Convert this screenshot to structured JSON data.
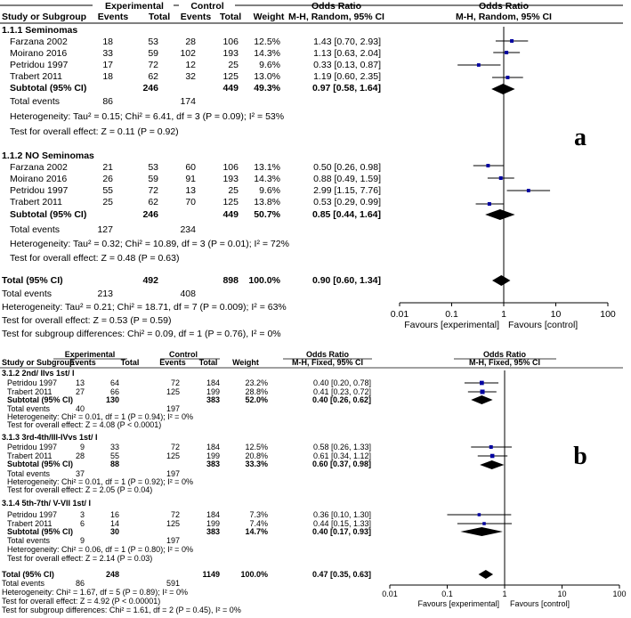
{
  "panels": {
    "a": {
      "label": "a",
      "header": {
        "group1": "Experimental",
        "group2": "Control",
        "col_study": "Study or Subgroup",
        "col_events1": "Events",
        "col_total1": "Total",
        "col_events2": "Events",
        "col_total2": "Total",
        "col_weight": "Weight",
        "col_or_title": "Odds Ratio",
        "col_or_method": "M-H, Random, 95% CI",
        "col_plot_title": "Odds Ratio",
        "col_plot_method": "M-H, Random, 95% CI"
      },
      "subgroups": [
        {
          "title": "1.1.1 Seminomas",
          "studies": [
            {
              "name": "Farzana  2002",
              "e1": "18",
              "n1": "53",
              "e2": "28",
              "n2": "106",
              "weight": "12.5%",
              "ci_text": "1.43 [0.70, 2.93]"
            },
            {
              "name": "Moirano  2016",
              "e1": "33",
              "n1": "59",
              "e2": "102",
              "n2": "193",
              "weight": "14.3%",
              "ci_text": "1.13 [0.63, 2.04]"
            },
            {
              "name": "Petridou 1997",
              "e1": "17",
              "n1": "72",
              "e2": "12",
              "n2": "25",
              "weight": "9.6%",
              "ci_text": "0.33 [0.13, 0.87]"
            },
            {
              "name": "Trabert 2011",
              "e1": "18",
              "n1": "62",
              "e2": "32",
              "n2": "125",
              "weight": "13.0%",
              "ci_text": "1.19 [0.60, 2.35]"
            }
          ],
          "subtotal": {
            "label": "Subtotal (95% CI)",
            "n1": "246",
            "n2": "449",
            "weight": "49.3%",
            "ci_text": "0.97 [0.58, 1.64]"
          },
          "total_events": {
            "label": "Total events",
            "e1": "86",
            "e2": "174"
          },
          "heterogeneity": "Heterogeneity: Tau² = 0.15; Chi² = 6.41, df = 3 (P = 0.09); I² = 53%",
          "overall": "Test for overall effect: Z = 0.11 (P = 0.92)"
        },
        {
          "title": "1.1.2 NO Seminomas",
          "studies": [
            {
              "name": "Farzana  2002",
              "e1": "21",
              "n1": "53",
              "e2": "60",
              "n2": "106",
              "weight": "13.1%",
              "ci_text": "0.50 [0.26, 0.98]"
            },
            {
              "name": "Moirano  2016",
              "e1": "26",
              "n1": "59",
              "e2": "91",
              "n2": "193",
              "weight": "14.3%",
              "ci_text": "0.88 [0.49, 1.59]"
            },
            {
              "name": "Petridou 1997",
              "e1": "55",
              "n1": "72",
              "e2": "13",
              "n2": "25",
              "weight": "9.6%",
              "ci_text": "2.99 [1.15, 7.76]"
            },
            {
              "name": "Trabert 2011",
              "e1": "25",
              "n1": "62",
              "e2": "70",
              "n2": "125",
              "weight": "13.8%",
              "ci_text": "0.53 [0.29, 0.99]"
            }
          ],
          "subtotal": {
            "label": "Subtotal (95% CI)",
            "n1": "246",
            "n2": "449",
            "weight": "50.7%",
            "ci_text": "0.85 [0.44, 1.64]"
          },
          "total_events": {
            "label": "Total events",
            "e1": "127",
            "e2": "234"
          },
          "heterogeneity": "Heterogeneity: Tau² = 0.32; Chi² = 10.89, df = 3 (P = 0.01); I² = 72%",
          "overall": "Test for overall effect: Z = 0.48 (P = 0.63)"
        }
      ],
      "total": {
        "label": "Total (95% CI)",
        "n1": "492",
        "n2": "898",
        "weight": "100.0%",
        "ci_text": "0.90 [0.60, 1.34]"
      },
      "total_events": {
        "label": "Total events",
        "e1": "213",
        "e2": "408"
      },
      "heterogeneity": "Heterogeneity: Tau² = 0.21; Chi² = 18.71, df = 7 (P = 0.009); I² = 63%",
      "overall": "Test for overall effect: Z = 0.53 (P = 0.59)",
      "subgroup_diff": "Test for subgroup differences: Chi² = 0.09, df = 1 (P = 0.76), I² = 0%",
      "axis_ticks": [
        "0.01",
        "0.1",
        "1",
        "10",
        "100"
      ],
      "favours_left": "Favours [experimental]",
      "favours_right": "Favours [control]"
    },
    "b": {
      "label": "b",
      "header": {
        "group1": "Experimental",
        "group2": "Control",
        "col_study": "Study or Subgroup",
        "col_events1": "Events",
        "col_total1": "Total",
        "col_events2": "Events",
        "col_total2": "Total",
        "col_weight": "Weight",
        "col_or_title": "Odds Ratio",
        "col_or_method": "M-H, Fixed, 95% CI",
        "col_plot_title": "Odds Ratio",
        "col_plot_method": "M-H, Fixed, 95% CI"
      },
      "subgroups": [
        {
          "title": "3.1.2 2nd/ IIvs 1st/ I",
          "studies": [
            {
              "name": "Petridou 1997",
              "e1": "13",
              "n1": "64",
              "e2": "72",
              "n2": "184",
              "weight": "23.2%",
              "ci_text": "0.40 [0.20, 0.78]"
            },
            {
              "name": "Trabert 2011",
              "e1": "27",
              "n1": "66",
              "e2": "125",
              "n2": "199",
              "weight": "28.8%",
              "ci_text": "0.41 [0.23, 0.72]"
            }
          ],
          "subtotal": {
            "label": "Subtotal (95% CI)",
            "n1": "130",
            "n2": "383",
            "weight": "52.0%",
            "ci_text": "0.40 [0.26, 0.62]"
          },
          "total_events": {
            "label": "Total events",
            "e1": "40",
            "e2": "197"
          },
          "heterogeneity": "Heterogeneity: Chi² = 0.01, df = 1 (P = 0.94); I² = 0%",
          "overall": "Test for overall effect: Z = 4.08 (P < 0.0001)"
        },
        {
          "title": "3.1.3 3rd-4th/III-IVvs 1st/ I",
          "studies": [
            {
              "name": "Petridou 1997",
              "e1": "9",
              "n1": "33",
              "e2": "72",
              "n2": "184",
              "weight": "12.5%",
              "ci_text": "0.58 [0.26, 1.33]"
            },
            {
              "name": "Trabert 2011",
              "e1": "28",
              "n1": "55",
              "e2": "125",
              "n2": "199",
              "weight": "20.8%",
              "ci_text": "0.61 [0.34, 1.12]"
            }
          ],
          "subtotal": {
            "label": "Subtotal (95% CI)",
            "n1": "88",
            "n2": "383",
            "weight": "33.3%",
            "ci_text": "0.60 [0.37, 0.98]"
          },
          "total_events": {
            "label": "Total events",
            "e1": "37",
            "e2": "197"
          },
          "heterogeneity": "Heterogeneity: Chi² = 0.01, df = 1 (P = 0.92); I² = 0%",
          "overall": "Test for overall effect: Z = 2.05 (P = 0.04)"
        },
        {
          "title": "3.1.4 5th-7th/ V-VII 1st/ I",
          "studies": [
            {
              "name": "Petridou 1997",
              "e1": "3",
              "n1": "16",
              "e2": "72",
              "n2": "184",
              "weight": "7.3%",
              "ci_text": "0.36 [0.10, 1.30]"
            },
            {
              "name": "Trabert 2011",
              "e1": "6",
              "n1": "14",
              "e2": "125",
              "n2": "199",
              "weight": "7.4%",
              "ci_text": "0.44 [0.15, 1.33]"
            }
          ],
          "subtotal": {
            "label": "Subtotal (95% CI)",
            "n1": "30",
            "n2": "383",
            "weight": "14.7%",
            "ci_text": "0.40 [0.17, 0.93]"
          },
          "total_events": {
            "label": "Total events",
            "e1": "9",
            "e2": "197"
          },
          "heterogeneity": "Heterogeneity: Chi² = 0.06, df = 1 (P = 0.80); I² = 0%",
          "overall": "Test for overall effect: Z = 2.14 (P = 0.03)"
        }
      ],
      "total": {
        "label": "Total (95% CI)",
        "n1": "248",
        "n2": "1149",
        "weight": "100.0%",
        "ci_text": "0.47 [0.35, 0.63]"
      },
      "total_events": {
        "label": "Total events",
        "e1": "86",
        "e2": "591"
      },
      "heterogeneity": "Heterogeneity: Chi² = 1.67, df = 5 (P = 0.89); I² = 0%",
      "overall": "Test for overall effect: Z = 4.92 (P < 0.00001)",
      "subgroup_diff": "Test for subgroup differences: Chi² = 1.61, df = 2 (P = 0.45), I² = 0%",
      "axis_ticks": [
        "0.01",
        "0.1",
        "1",
        "10",
        "100"
      ],
      "favours_left": "Favours [experimental]",
      "favours_right": "Favours [control]"
    }
  },
  "chart_data": [
    {
      "type": "forest",
      "title": "a",
      "xlabel": "Odds Ratio M-H, Random, 95% CI (log scale)",
      "xlim": [
        0.01,
        100
      ],
      "favours": [
        "Favours [experimental]",
        "Favours [control]"
      ],
      "studies": [
        {
          "subgroup": "1.1.1 Seminomas",
          "name": "Farzana  2002",
          "or": 1.43,
          "lo": 0.7,
          "hi": 2.93,
          "weight": 12.5
        },
        {
          "subgroup": "1.1.1 Seminomas",
          "name": "Moirano  2016",
          "or": 1.13,
          "lo": 0.63,
          "hi": 2.04,
          "weight": 14.3
        },
        {
          "subgroup": "1.1.1 Seminomas",
          "name": "Petridou 1997",
          "or": 0.33,
          "lo": 0.13,
          "hi": 0.87,
          "weight": 9.6
        },
        {
          "subgroup": "1.1.1 Seminomas",
          "name": "Trabert 2011",
          "or": 1.19,
          "lo": 0.6,
          "hi": 2.35,
          "weight": 13.0
        },
        {
          "subgroup": "1.1.2 NO Seminomas",
          "name": "Farzana  2002",
          "or": 0.5,
          "lo": 0.26,
          "hi": 0.98,
          "weight": 13.1
        },
        {
          "subgroup": "1.1.2 NO Seminomas",
          "name": "Moirano  2016",
          "or": 0.88,
          "lo": 0.49,
          "hi": 1.59,
          "weight": 14.3
        },
        {
          "subgroup": "1.1.2 NO Seminomas",
          "name": "Petridou 1997",
          "or": 2.99,
          "lo": 1.15,
          "hi": 7.76,
          "weight": 9.6
        },
        {
          "subgroup": "1.1.2 NO Seminomas",
          "name": "Trabert 2011",
          "or": 0.53,
          "lo": 0.29,
          "hi": 0.99,
          "weight": 13.8
        }
      ],
      "summaries": [
        {
          "name": "Subtotal 1.1.1",
          "or": 0.97,
          "lo": 0.58,
          "hi": 1.64,
          "weight": 49.3
        },
        {
          "name": "Subtotal 1.1.2",
          "or": 0.85,
          "lo": 0.44,
          "hi": 1.64,
          "weight": 50.7
        },
        {
          "name": "Total",
          "or": 0.9,
          "lo": 0.6,
          "hi": 1.34,
          "weight": 100.0
        }
      ]
    },
    {
      "type": "forest",
      "title": "b",
      "xlabel": "Odds Ratio M-H, Fixed, 95% CI (log scale)",
      "xlim": [
        0.01,
        100
      ],
      "favours": [
        "Favours [experimental]",
        "Favours [control]"
      ],
      "studies": [
        {
          "subgroup": "3.1.2",
          "name": "Petridou 1997",
          "or": 0.4,
          "lo": 0.2,
          "hi": 0.78,
          "weight": 23.2
        },
        {
          "subgroup": "3.1.2",
          "name": "Trabert 2011",
          "or": 0.41,
          "lo": 0.23,
          "hi": 0.72,
          "weight": 28.8
        },
        {
          "subgroup": "3.1.3",
          "name": "Petridou 1997",
          "or": 0.58,
          "lo": 0.26,
          "hi": 1.33,
          "weight": 12.5
        },
        {
          "subgroup": "3.1.3",
          "name": "Trabert 2011",
          "or": 0.61,
          "lo": 0.34,
          "hi": 1.12,
          "weight": 20.8
        },
        {
          "subgroup": "3.1.4",
          "name": "Petridou 1997",
          "or": 0.36,
          "lo": 0.1,
          "hi": 1.3,
          "weight": 7.3
        },
        {
          "subgroup": "3.1.4",
          "name": "Trabert 2011",
          "or": 0.44,
          "lo": 0.15,
          "hi": 1.33,
          "weight": 7.4
        }
      ],
      "summaries": [
        {
          "name": "Subtotal 3.1.2",
          "or": 0.4,
          "lo": 0.26,
          "hi": 0.62,
          "weight": 52.0
        },
        {
          "name": "Subtotal 3.1.3",
          "or": 0.6,
          "lo": 0.37,
          "hi": 0.98,
          "weight": 33.3
        },
        {
          "name": "Subtotal 3.1.4",
          "or": 0.4,
          "lo": 0.17,
          "hi": 0.93,
          "weight": 14.7
        },
        {
          "name": "Total",
          "or": 0.47,
          "lo": 0.35,
          "hi": 0.63,
          "weight": 100.0
        }
      ]
    }
  ]
}
